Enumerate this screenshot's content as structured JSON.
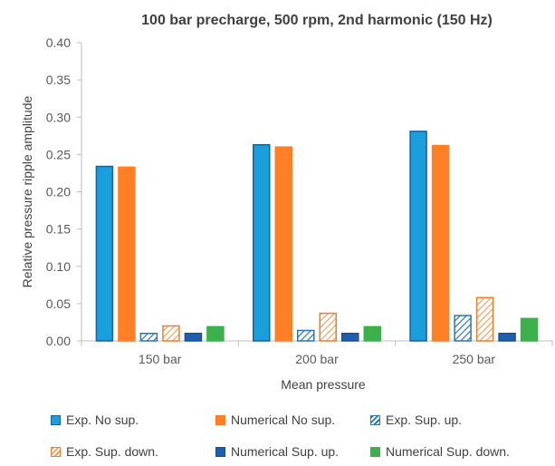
{
  "chart_data": {
    "type": "bar",
    "title": "100 bar precharge, 500 rpm, 2nd harmonic (150 Hz)",
    "xlabel": "Mean pressure",
    "ylabel": "Relative pressure ripple amplitude",
    "categories": [
      "150 bar",
      "200 bar",
      "250 bar"
    ],
    "ylim": [
      0,
      0.4
    ],
    "yticks": [
      "0.00",
      "0.05",
      "0.10",
      "0.15",
      "0.20",
      "0.25",
      "0.30",
      "0.35",
      "0.40"
    ],
    "ytick_values": [
      0,
      0.05,
      0.1,
      0.15,
      0.2,
      0.25,
      0.3,
      0.35,
      0.4
    ],
    "grid": false,
    "legend_position": "bottom",
    "series": [
      {
        "name": "Exp. No sup.",
        "values": [
          0.234,
          0.263,
          0.281
        ],
        "color": "#1a9fdc",
        "edge": "#1b5f9c",
        "pattern": "solid"
      },
      {
        "name": "Numerical No sup.",
        "values": [
          0.233,
          0.26,
          0.262
        ],
        "color": "#ff7f27",
        "edge": "#ff7f27",
        "pattern": "solid"
      },
      {
        "name": "Exp. Sup. up.",
        "values": [
          0.01,
          0.014,
          0.034
        ],
        "color": "#2e75b6",
        "edge": "#2e75b6",
        "pattern": "hatch"
      },
      {
        "name": "Exp. Sup. down.",
        "values": [
          0.02,
          0.037,
          0.058
        ],
        "color": "#f4a060",
        "edge": "#ed7d31",
        "pattern": "hatch"
      },
      {
        "name": "Numerical Sup. up.",
        "values": [
          0.01,
          0.01,
          0.01
        ],
        "color": "#1f5fb0",
        "edge": "#1b4f8c",
        "pattern": "solid"
      },
      {
        "name": "Numerical Sup. down.",
        "values": [
          0.019,
          0.019,
          0.03
        ],
        "color": "#3cb04a",
        "edge": "#3cb04a",
        "pattern": "solid"
      }
    ]
  }
}
